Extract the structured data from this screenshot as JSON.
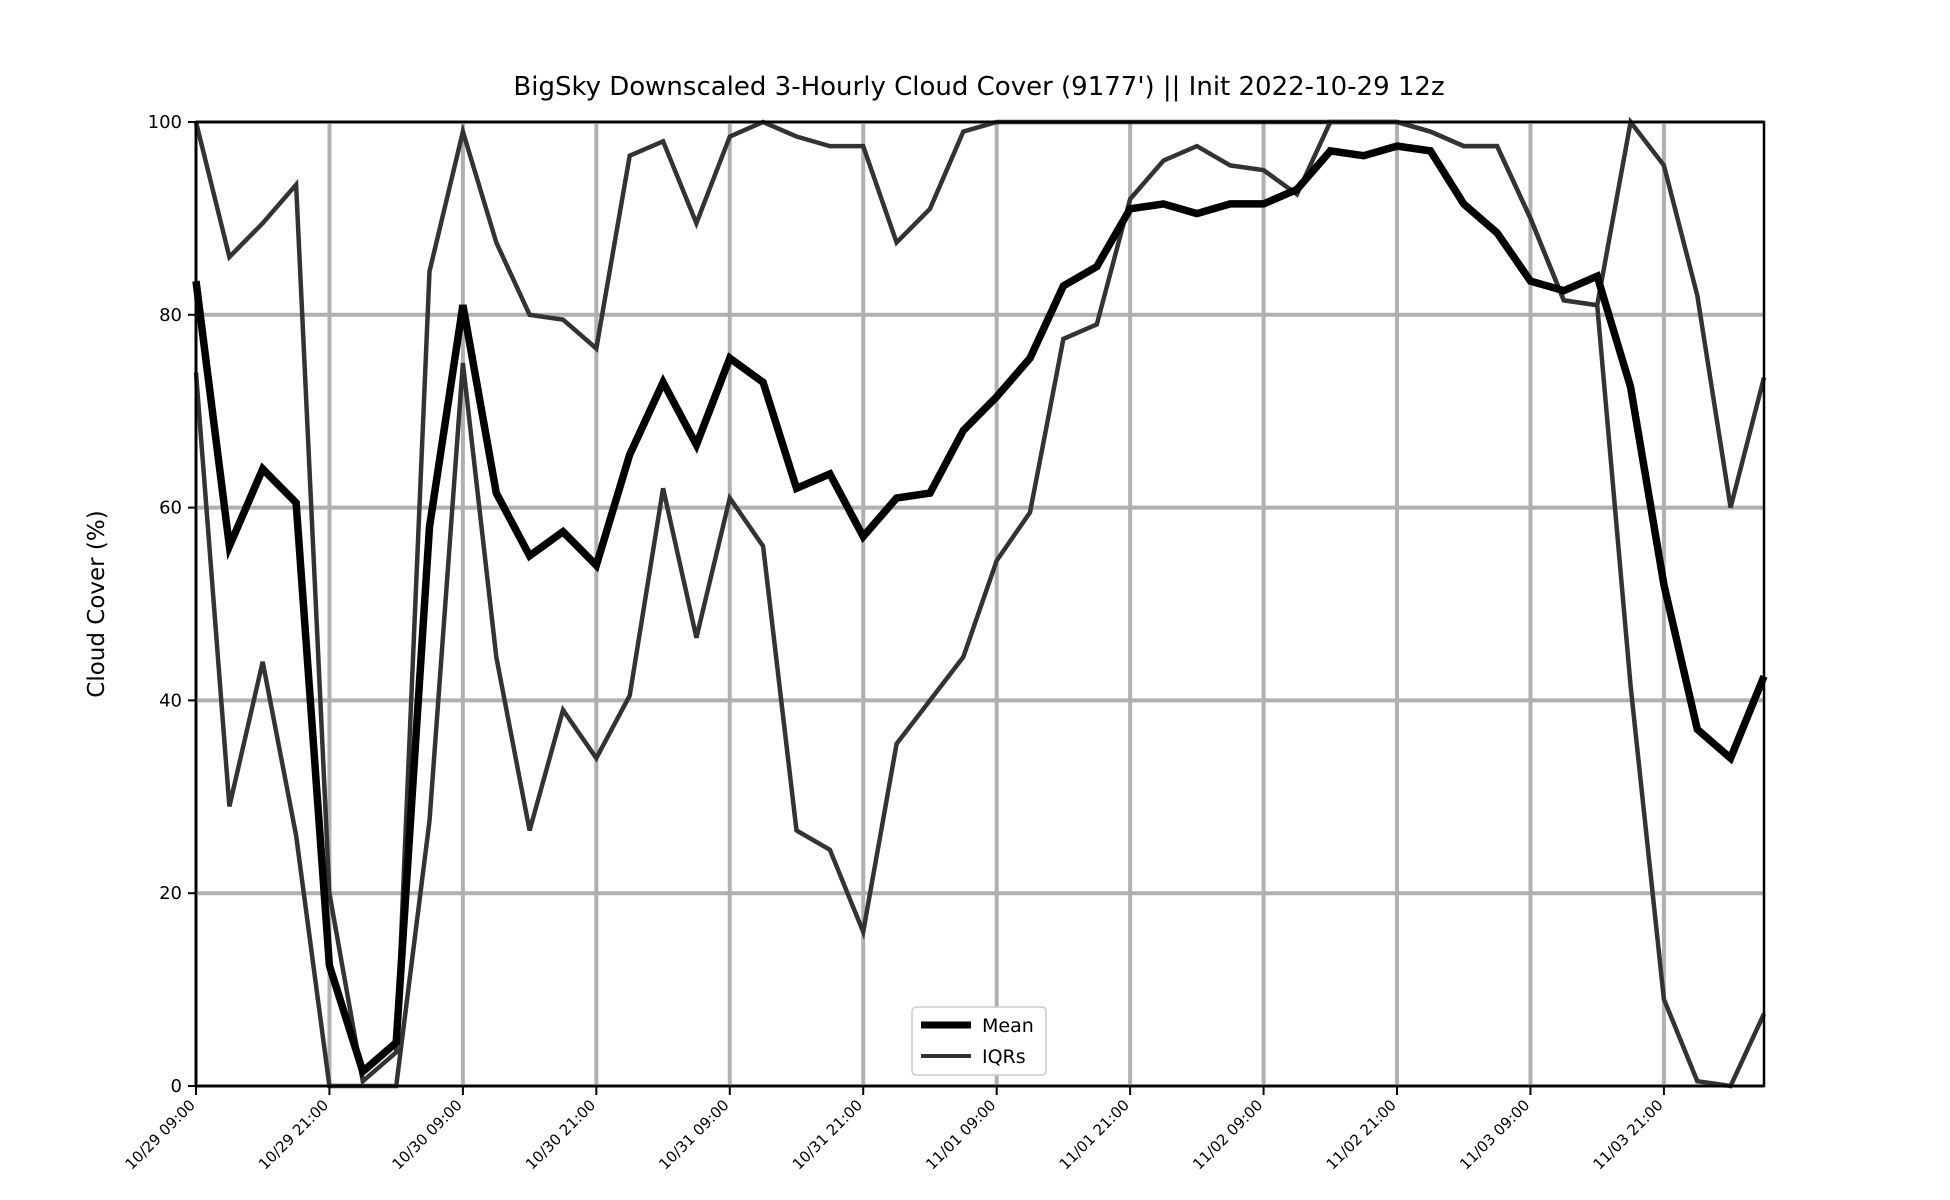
{
  "chart_data": {
    "type": "line",
    "title": "BigSky Downscaled 3-Hourly Cloud Cover (9177') || Init 2022-10-29 12z",
    "xlabel": "",
    "ylabel": "Cloud Cover (%)",
    "ylim": [
      0,
      100
    ],
    "yticks": [
      0,
      20,
      40,
      60,
      80,
      100
    ],
    "grid": true,
    "legend_position": "bottom-center",
    "x": [
      "10/29 09:00",
      "10/29 12:00",
      "10/29 15:00",
      "10/29 18:00",
      "10/29 21:00",
      "10/30 00:00",
      "10/30 03:00",
      "10/30 06:00",
      "10/30 09:00",
      "10/30 12:00",
      "10/30 15:00",
      "10/30 18:00",
      "10/30 21:00",
      "10/31 00:00",
      "10/31 03:00",
      "10/31 06:00",
      "10/31 09:00",
      "10/31 12:00",
      "10/31 15:00",
      "10/31 18:00",
      "10/31 21:00",
      "11/01 00:00",
      "11/01 03:00",
      "11/01 06:00",
      "11/01 09:00",
      "11/01 12:00",
      "11/01 15:00",
      "11/01 18:00",
      "11/01 21:00",
      "11/02 00:00",
      "11/02 03:00",
      "11/02 06:00",
      "11/02 09:00",
      "11/02 12:00",
      "11/02 15:00",
      "11/02 18:00",
      "11/02 21:00",
      "11/03 00:00",
      "11/03 03:00",
      "11/03 06:00",
      "11/03 09:00",
      "11/03 12:00",
      "11/03 15:00",
      "11/03 18:00",
      "11/03 21:00",
      "11/04 00:00",
      "11/04 03:00",
      "11/04 06:00"
    ],
    "xticks": [
      "10/29 09:00",
      "10/29 21:00",
      "10/30 09:00",
      "10/30 21:00",
      "10/31 09:00",
      "10/31 21:00",
      "11/01 09:00",
      "11/01 21:00",
      "11/02 09:00",
      "11/02 21:00",
      "11/03 09:00",
      "11/03 21:00"
    ],
    "series": [
      {
        "name": "Mean",
        "color": "#000000",
        "values": [
          83.5,
          56,
          64,
          60.5,
          12.5,
          1.5,
          4.5,
          58,
          81,
          61.5,
          55,
          57.5,
          54,
          65.5,
          73,
          66.5,
          75.5,
          73,
          62,
          63.5,
          57,
          61,
          61.5,
          68,
          71.5,
          75.5,
          83,
          85,
          91,
          91.5,
          90.5,
          91.5,
          91.5,
          93,
          97,
          96.5,
          97.5,
          97,
          91.5,
          88.5,
          83.5,
          82.5,
          84,
          72.5,
          52,
          37,
          34,
          42.5
        ]
      },
      {
        "name": "IQRs",
        "color": "#333333",
        "values": [
          100,
          86,
          89.5,
          93.5,
          20,
          0.5,
          3.5,
          84.5,
          99,
          87.5,
          80,
          79.5,
          76.5,
          96.5,
          98,
          89.5,
          98.5,
          100,
          98.5,
          97.5,
          97.5,
          87.5,
          91,
          99,
          100,
          100,
          100,
          100,
          100,
          100,
          100,
          100,
          100,
          100,
          100,
          100,
          100,
          99,
          97.5,
          97.5,
          90,
          81.5,
          81,
          100,
          95.5,
          82,
          60,
          73.5
        ]
      },
      {
        "name": "",
        "color": "#333333",
        "values": [
          74,
          29,
          44,
          26,
          0,
          0,
          0,
          27.5,
          75,
          44.5,
          26.5,
          39,
          34,
          40.5,
          62,
          46.5,
          61,
          56,
          26.5,
          24.5,
          16,
          35.5,
          40,
          44.5,
          54.5,
          59.5,
          77.5,
          79,
          92,
          96,
          97.5,
          95.5,
          95,
          92.5,
          100,
          100,
          100,
          99,
          97.5,
          97.5,
          90,
          81.5,
          81,
          41.5,
          9,
          0.5,
          0,
          7.5
        ]
      }
    ],
    "legend": [
      "Mean",
      "IQRs"
    ]
  }
}
